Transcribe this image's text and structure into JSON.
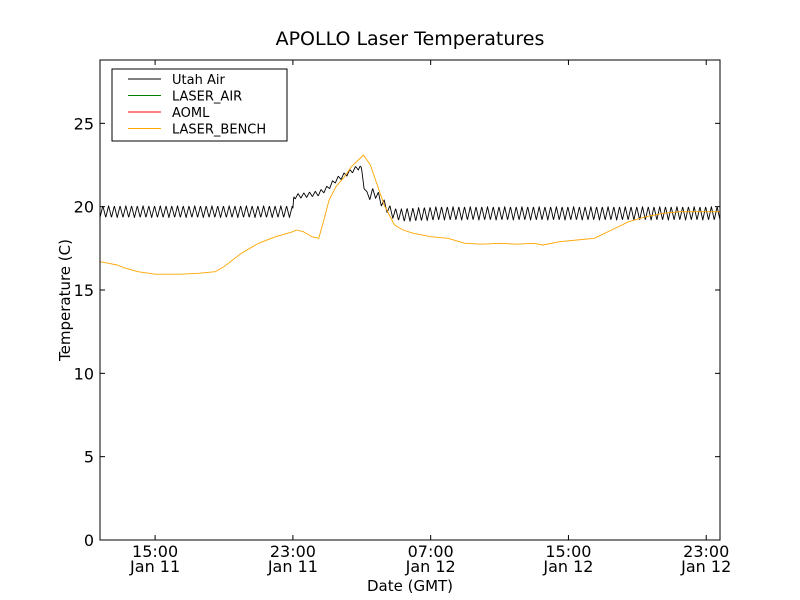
{
  "chart_data": {
    "type": "line",
    "title": "APOLLO Laser Temperatures",
    "xlabel": "Date (GMT)",
    "ylabel": "Temperature (C)",
    "xlim_hours": [
      11.8,
      47.8
    ],
    "ylim": [
      0,
      28.8
    ],
    "x_unit": "hours since 2012-01-11 00:00 GMT",
    "yticks": [
      0,
      5,
      10,
      15,
      20,
      25
    ],
    "xticks": [
      {
        "hour": 15,
        "time": "15:00",
        "date": "Jan 11"
      },
      {
        "hour": 23,
        "time": "23:00",
        "date": "Jan 11"
      },
      {
        "hour": 31,
        "time": "07:00",
        "date": "Jan 12"
      },
      {
        "hour": 39,
        "time": "15:00",
        "date": "Jan 12"
      },
      {
        "hour": 47,
        "time": "23:00",
        "date": "Jan 12"
      }
    ],
    "legend_position": "top-left",
    "series": [
      {
        "name": "Utah Air",
        "color": "#000000",
        "note": "oscillates about base with amplitude and ~0.33 h period",
        "base": [
          [
            11.8,
            19.7
          ],
          [
            23.0,
            19.7
          ],
          [
            23.05,
            20.6
          ],
          [
            24.5,
            20.8
          ],
          [
            25.0,
            21.1
          ],
          [
            25.5,
            21.6
          ],
          [
            26.5,
            22.2
          ],
          [
            26.9,
            22.4
          ],
          [
            27.0,
            22.0
          ],
          [
            27.3,
            20.6
          ],
          [
            27.6,
            20.8
          ],
          [
            27.8,
            20.8
          ],
          [
            28.3,
            20.1
          ],
          [
            28.8,
            19.6
          ],
          [
            29.3,
            19.5
          ],
          [
            31.5,
            19.6
          ],
          [
            47.8,
            19.6
          ]
        ],
        "amplitude": [
          [
            11.8,
            0.35
          ],
          [
            23.0,
            0.35
          ],
          [
            23.05,
            0.15
          ],
          [
            26.9,
            0.15
          ],
          [
            27.0,
            0.3
          ],
          [
            28.8,
            0.3
          ],
          [
            29.5,
            0.4
          ],
          [
            47.8,
            0.4
          ]
        ]
      },
      {
        "name": "LASER_AIR",
        "color": "#008000",
        "hidden_behind": "LASER_BENCH",
        "points": []
      },
      {
        "name": "AOML",
        "color": "#ff0000",
        "hidden_behind": "LASER_BENCH",
        "points": []
      },
      {
        "name": "LASER_BENCH",
        "color": "#ffa500",
        "points": [
          [
            11.8,
            16.7
          ],
          [
            12.3,
            16.6
          ],
          [
            12.8,
            16.5
          ],
          [
            13.3,
            16.3
          ],
          [
            14.0,
            16.1
          ],
          [
            15.0,
            15.95
          ],
          [
            16.5,
            15.95
          ],
          [
            17.5,
            16.0
          ],
          [
            18.5,
            16.1
          ],
          [
            19.0,
            16.4
          ],
          [
            20.0,
            17.2
          ],
          [
            21.0,
            17.8
          ],
          [
            22.0,
            18.2
          ],
          [
            23.0,
            18.5
          ],
          [
            23.2,
            18.6
          ],
          [
            23.6,
            18.5
          ],
          [
            24.1,
            18.2
          ],
          [
            24.5,
            18.1
          ],
          [
            24.8,
            19.2
          ],
          [
            25.1,
            20.4
          ],
          [
            25.5,
            21.2
          ],
          [
            26.0,
            21.8
          ],
          [
            26.4,
            22.4
          ],
          [
            26.8,
            22.8
          ],
          [
            27.1,
            23.1
          ],
          [
            27.5,
            22.5
          ],
          [
            27.8,
            21.6
          ],
          [
            28.3,
            20.1
          ],
          [
            28.9,
            18.9
          ],
          [
            29.4,
            18.6
          ],
          [
            30.0,
            18.4
          ],
          [
            31.0,
            18.2
          ],
          [
            32.0,
            18.1
          ],
          [
            33.0,
            17.8
          ],
          [
            34.0,
            17.75
          ],
          [
            35.0,
            17.8
          ],
          [
            36.0,
            17.75
          ],
          [
            37.0,
            17.8
          ],
          [
            37.5,
            17.7
          ],
          [
            38.5,
            17.9
          ],
          [
            39.5,
            18.0
          ],
          [
            40.5,
            18.1
          ],
          [
            41.5,
            18.6
          ],
          [
            42.5,
            19.1
          ],
          [
            43.5,
            19.4
          ],
          [
            44.5,
            19.6
          ],
          [
            45.5,
            19.7
          ],
          [
            47.8,
            19.7
          ]
        ]
      }
    ]
  }
}
